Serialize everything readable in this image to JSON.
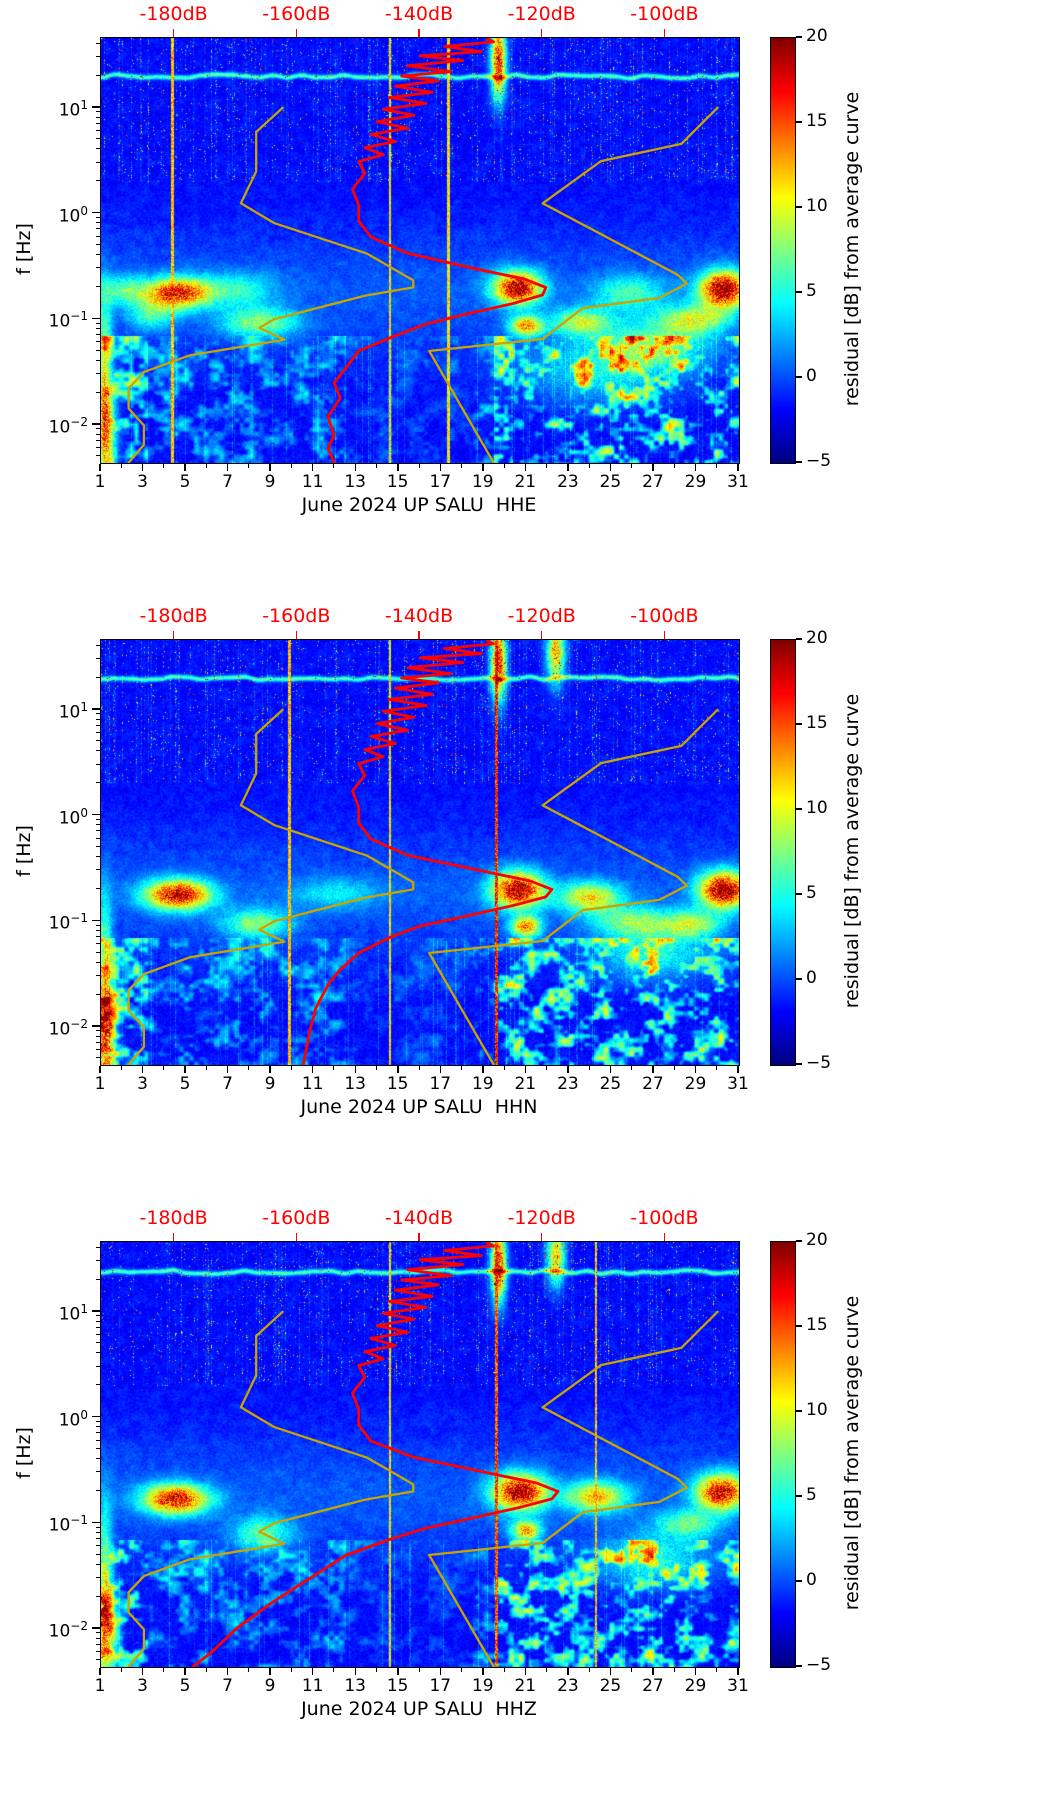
{
  "axes": {
    "ylabel": "f [Hz]",
    "y_tick_exps": [
      "1",
      "0",
      "−1",
      "−2"
    ],
    "y_tick_lf": [
      1,
      0,
      -1,
      -2
    ],
    "x_tick_labels": [
      "1",
      "3",
      "5",
      "7",
      "9",
      "11",
      "13",
      "15",
      "17",
      "19",
      "21",
      "23",
      "25",
      "27",
      "29",
      "31"
    ],
    "x_tick_days": [
      1,
      3,
      5,
      7,
      9,
      11,
      13,
      15,
      17,
      19,
      21,
      23,
      25,
      27,
      29,
      31
    ],
    "top_tick_labels": [
      "-180dB",
      "-160dB",
      "-140dB",
      "-120dB",
      "-100dB"
    ],
    "top_tick_db": [
      -180,
      -160,
      -140,
      -120,
      -100
    ],
    "top_axis_color": "#ff0000",
    "db_range": [
      -192,
      -88
    ],
    "day_range": [
      1,
      31
    ],
    "logf_range": [
      -2.36,
      1.66
    ]
  },
  "colorbar": {
    "label": "residual [dB] from average curve",
    "tick_labels": [
      "20",
      "15",
      "10",
      "5",
      "0",
      "−5"
    ],
    "tick_values": [
      20,
      15,
      10,
      5,
      0,
      -5
    ],
    "vmin": -5,
    "vmax": 20,
    "cmap": "jet"
  },
  "mean_psd_color": "#ff0000",
  "noise_models": {
    "color": "#c9a400",
    "nlnm": [
      [
        10,
        -162.4
      ],
      [
        5.9,
        -166.7
      ],
      [
        2.5,
        -166.7
      ],
      [
        1.25,
        -169.2
      ],
      [
        0.81,
        -163.7
      ],
      [
        0.417,
        -148.6
      ],
      [
        0.233,
        -141.1
      ],
      [
        0.2,
        -141.1
      ],
      [
        0.167,
        -149
      ],
      [
        0.1,
        -163.8
      ],
      [
        0.083,
        -166.2
      ],
      [
        0.064,
        -162.1
      ],
      [
        0.0457,
        -177.5
      ],
      [
        0.0316,
        -185
      ],
      [
        0.0222,
        -187.5
      ],
      [
        0.0143,
        -187.5
      ],
      [
        0.0099,
        -185
      ],
      [
        0.0065,
        -185
      ],
      [
        0.0044,
        -187.5
      ]
    ],
    "nhnm": [
      [
        10,
        -91.5
      ],
      [
        4.55,
        -97.4
      ],
      [
        3.13,
        -110.5
      ],
      [
        1.25,
        -120
      ],
      [
        0.263,
        -98
      ],
      [
        0.217,
        -96.5
      ],
      [
        0.159,
        -101
      ],
      [
        0.127,
        -113.5
      ],
      [
        0.065,
        -120
      ],
      [
        0.05,
        -138.5
      ],
      [
        0.0044,
        -128
      ]
    ]
  },
  "chart_data": [
    {
      "type": "heatmap",
      "channel": "HHE",
      "xlabel": "June 2024 UP SALU  HHE",
      "ylabel": "f [Hz]",
      "x_range_days": [
        1,
        31
      ],
      "f_range_hz": [
        0.0044,
        45
      ],
      "value_range_db": [
        -5,
        20
      ],
      "colormap": "jet",
      "typical_background_db": -3,
      "persistent_line_hz": 20,
      "hotspots": [
        [
          4.6,
          0.18,
          17,
          1.1,
          0.1
        ],
        [
          3.4,
          0.11,
          6,
          0.8,
          0.1
        ],
        [
          8.5,
          0.093,
          8,
          1.3,
          0.1
        ],
        [
          7.5,
          0.19,
          5,
          1.2,
          0.12
        ],
        [
          20.6,
          0.2,
          19,
          0.8,
          0.11
        ],
        [
          21.0,
          0.087,
          13,
          0.55,
          0.07
        ],
        [
          23.6,
          0.095,
          9,
          1.0,
          0.09
        ],
        [
          25.8,
          0.18,
          6,
          1.2,
          0.12
        ],
        [
          28.9,
          0.1,
          9,
          1.2,
          0.1
        ],
        [
          30.3,
          0.195,
          20,
          0.8,
          0.12
        ],
        [
          27.0,
          0.056,
          7,
          1.8,
          0.16
        ],
        [
          24.5,
          0.032,
          5,
          2.5,
          0.22
        ],
        [
          1.2,
          0.008,
          12,
          0.35,
          0.35
        ],
        [
          1.15,
          0.032,
          9,
          0.25,
          0.5
        ],
        [
          2.0,
          0.19,
          6,
          0.8,
          0.1
        ],
        [
          19.7,
          28,
          18,
          0.25,
          0.25
        ]
      ],
      "transient_column_events": [
        [
          4.35,
          12
        ],
        [
          14.6,
          11
        ],
        [
          17.35,
          11
        ]
      ],
      "mean_psd_db_vs_hz": [
        [
          45,
          -129
        ],
        [
          42,
          -128
        ],
        [
          38,
          -136
        ],
        [
          34,
          -130
        ],
        [
          31,
          -140
        ],
        [
          28,
          -133
        ],
        [
          25,
          -142
        ],
        [
          22,
          -135
        ],
        [
          20,
          -143
        ],
        [
          18,
          -137
        ],
        [
          16,
          -144
        ],
        [
          14,
          -138
        ],
        [
          12.5,
          -145
        ],
        [
          11,
          -139
        ],
        [
          9.7,
          -146
        ],
        [
          8.5,
          -141
        ],
        [
          7.4,
          -147
        ],
        [
          6.4,
          -142
        ],
        [
          5.6,
          -148
        ],
        [
          4.8,
          -144
        ],
        [
          4.2,
          -149
        ],
        [
          3.6,
          -146
        ],
        [
          3.1,
          -150
        ],
        [
          2.4,
          -149
        ],
        [
          1.7,
          -151
        ],
        [
          1.2,
          -150
        ],
        [
          0.85,
          -150
        ],
        [
          0.6,
          -148
        ],
        [
          0.42,
          -142
        ],
        [
          0.3,
          -131
        ],
        [
          0.24,
          -123
        ],
        [
          0.2,
          -119.5
        ],
        [
          0.17,
          -120
        ],
        [
          0.14,
          -125
        ],
        [
          0.11,
          -133
        ],
        [
          0.09,
          -139
        ],
        [
          0.07,
          -144
        ],
        [
          0.05,
          -150
        ],
        [
          0.035,
          -152
        ],
        [
          0.025,
          -154
        ],
        [
          0.018,
          -153
        ],
        [
          0.012,
          -155
        ],
        [
          0.008,
          -154
        ],
        [
          0.006,
          -155
        ],
        [
          0.0044,
          -154
        ]
      ]
    },
    {
      "type": "heatmap",
      "channel": "HHN",
      "xlabel": "June 2024 UP SALU  HHN",
      "ylabel": "f [Hz]",
      "x_range_days": [
        1,
        31
      ],
      "f_range_hz": [
        0.0044,
        45
      ],
      "value_range_db": [
        -5,
        20
      ],
      "colormap": "jet",
      "typical_background_db": -3,
      "persistent_line_hz": 20,
      "hotspots": [
        [
          4.6,
          0.18,
          18,
          1.1,
          0.1
        ],
        [
          8.3,
          0.095,
          8,
          1.1,
          0.1
        ],
        [
          20.6,
          0.2,
          19,
          0.85,
          0.12
        ],
        [
          21.0,
          0.089,
          14,
          0.5,
          0.07
        ],
        [
          24.0,
          0.17,
          11,
          1.0,
          0.1
        ],
        [
          26.0,
          0.1,
          7,
          1.3,
          0.1
        ],
        [
          30.3,
          0.2,
          20,
          0.8,
          0.12
        ],
        [
          28.8,
          0.095,
          8,
          1.0,
          0.09
        ],
        [
          1.2,
          0.008,
          12,
          0.35,
          0.35
        ],
        [
          1.15,
          0.032,
          9,
          0.25,
          0.5
        ],
        [
          12.0,
          0.185,
          4,
          1.5,
          0.1
        ],
        [
          27.0,
          0.05,
          6,
          1.8,
          0.18
        ],
        [
          19.7,
          28,
          18,
          0.25,
          0.25
        ],
        [
          22.4,
          35,
          14,
          0.3,
          0.2
        ]
      ],
      "transient_column_events": [
        [
          9.85,
          12
        ],
        [
          14.6,
          11
        ],
        [
          19.6,
          16
        ]
      ],
      "mean_psd_db_vs_hz": [
        [
          45,
          -129
        ],
        [
          42,
          -128
        ],
        [
          38,
          -136
        ],
        [
          34,
          -130
        ],
        [
          31,
          -140
        ],
        [
          28,
          -133
        ],
        [
          25,
          -142
        ],
        [
          22,
          -135
        ],
        [
          20,
          -143
        ],
        [
          18,
          -137
        ],
        [
          16,
          -144
        ],
        [
          14,
          -138
        ],
        [
          12.5,
          -145
        ],
        [
          11,
          -139
        ],
        [
          9.7,
          -146
        ],
        [
          8.5,
          -141
        ],
        [
          7.4,
          -147
        ],
        [
          6.4,
          -142
        ],
        [
          5.6,
          -148
        ],
        [
          4.8,
          -144
        ],
        [
          4.2,
          -149
        ],
        [
          3.6,
          -146
        ],
        [
          3.1,
          -150
        ],
        [
          2.4,
          -149
        ],
        [
          1.7,
          -151
        ],
        [
          1.2,
          -150
        ],
        [
          0.85,
          -150
        ],
        [
          0.6,
          -148
        ],
        [
          0.42,
          -142
        ],
        [
          0.3,
          -130
        ],
        [
          0.24,
          -122
        ],
        [
          0.2,
          -118.5
        ],
        [
          0.17,
          -119.5
        ],
        [
          0.14,
          -125
        ],
        [
          0.11,
          -133
        ],
        [
          0.09,
          -140
        ],
        [
          0.07,
          -145
        ],
        [
          0.05,
          -150
        ],
        [
          0.035,
          -153
        ],
        [
          0.025,
          -155
        ],
        [
          0.015,
          -157
        ],
        [
          0.009,
          -158
        ],
        [
          0.0044,
          -159
        ]
      ]
    },
    {
      "type": "heatmap",
      "channel": "HHZ",
      "xlabel": "June 2024 UP SALU  HHZ",
      "ylabel": "f [Hz]",
      "x_range_days": [
        1,
        31
      ],
      "f_range_hz": [
        0.0044,
        45
      ],
      "value_range_db": [
        -5,
        20
      ],
      "colormap": "jet",
      "typical_background_db": -3,
      "persistent_line_hz": 24,
      "hotspots": [
        [
          4.5,
          0.17,
          17,
          1.1,
          0.1
        ],
        [
          8.6,
          0.08,
          7,
          1.0,
          0.12
        ],
        [
          20.7,
          0.2,
          19,
          0.9,
          0.12
        ],
        [
          21.0,
          0.085,
          13,
          0.5,
          0.07
        ],
        [
          24.3,
          0.18,
          12,
          1.0,
          0.1
        ],
        [
          30.2,
          0.2,
          18,
          0.85,
          0.12
        ],
        [
          28.6,
          0.1,
          7,
          1.0,
          0.09
        ],
        [
          1.2,
          0.008,
          11,
          0.35,
          0.35
        ],
        [
          1.15,
          0.032,
          8,
          0.25,
          0.5
        ],
        [
          27.0,
          0.045,
          6,
          1.8,
          0.18
        ],
        [
          19.7,
          28,
          18,
          0.25,
          0.25
        ],
        [
          22.4,
          35,
          13,
          0.3,
          0.2
        ]
      ],
      "transient_column_events": [
        [
          14.6,
          11
        ],
        [
          19.6,
          15
        ],
        [
          24.3,
          12
        ]
      ],
      "mean_psd_db_vs_hz": [
        [
          45,
          -129
        ],
        [
          42,
          -128
        ],
        [
          38,
          -136
        ],
        [
          34,
          -130
        ],
        [
          31,
          -140
        ],
        [
          28,
          -133
        ],
        [
          25,
          -142
        ],
        [
          22,
          -135
        ],
        [
          20,
          -143
        ],
        [
          18,
          -137
        ],
        [
          16,
          -144
        ],
        [
          14,
          -138
        ],
        [
          12.5,
          -145
        ],
        [
          11,
          -139
        ],
        [
          9.7,
          -146
        ],
        [
          8.5,
          -141
        ],
        [
          7.4,
          -147
        ],
        [
          6.4,
          -142
        ],
        [
          5.6,
          -148
        ],
        [
          4.8,
          -144
        ],
        [
          4.2,
          -149
        ],
        [
          3.6,
          -146
        ],
        [
          3.1,
          -150
        ],
        [
          2.4,
          -149
        ],
        [
          1.7,
          -151
        ],
        [
          1.2,
          -150
        ],
        [
          0.85,
          -150
        ],
        [
          0.6,
          -148
        ],
        [
          0.42,
          -141
        ],
        [
          0.3,
          -129
        ],
        [
          0.24,
          -121
        ],
        [
          0.2,
          -117.5
        ],
        [
          0.17,
          -118.5
        ],
        [
          0.14,
          -124
        ],
        [
          0.11,
          -132
        ],
        [
          0.09,
          -139
        ],
        [
          0.07,
          -145
        ],
        [
          0.05,
          -152
        ],
        [
          0.03,
          -158
        ],
        [
          0.018,
          -164
        ],
        [
          0.01,
          -170
        ],
        [
          0.006,
          -174
        ],
        [
          0.0044,
          -177
        ]
      ]
    }
  ]
}
